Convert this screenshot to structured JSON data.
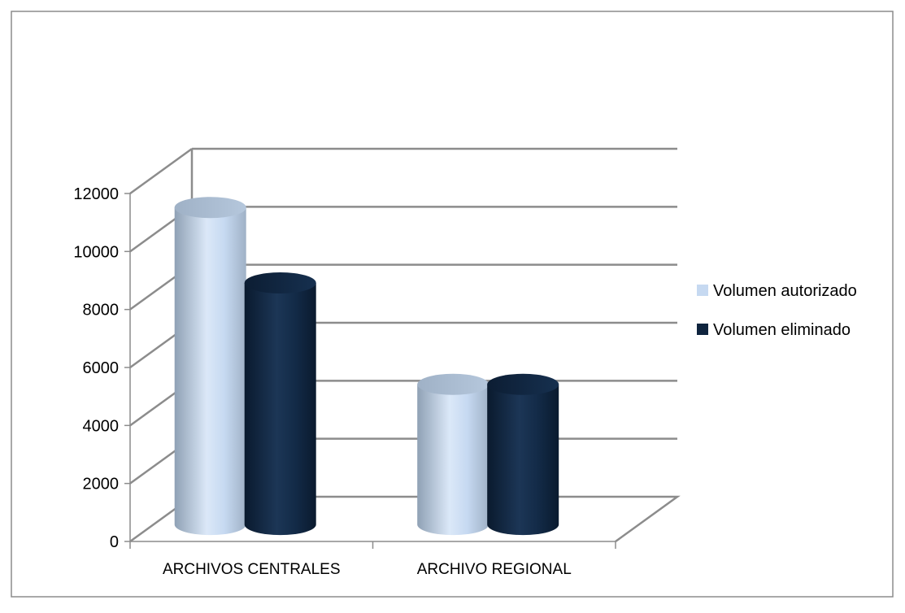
{
  "chart_data": {
    "type": "bar",
    "style": "3d-cylinder",
    "categories": [
      "ARCHIVOS CENTRALES",
      "ARCHIVO REGIONAL"
    ],
    "series": [
      {
        "name": "Volumen autorizado",
        "values": [
          11100,
          5000
        ],
        "color": "#c6d9f1"
      },
      {
        "name": "Volumen eliminado",
        "values": [
          8500,
          5000
        ],
        "color": "#0f243e"
      }
    ],
    "yticks": [
      "0",
      "2000",
      "4000",
      "6000",
      "8000",
      "10000",
      "12000"
    ],
    "ylim": [
      0,
      12000
    ],
    "grid": true,
    "legend_position": "right",
    "title": "",
    "xlabel": "",
    "ylabel": ""
  },
  "colors": {
    "gridline": "#8c8c8c",
    "axis": "#8c8c8c",
    "frame_border": "#8c8c8c",
    "text": "#000000"
  }
}
